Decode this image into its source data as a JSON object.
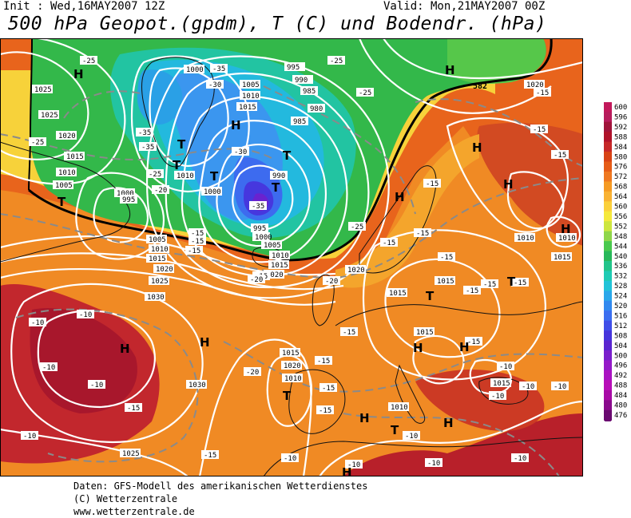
{
  "header": {
    "init": "Init : Wed,16MAY2007 12Z",
    "valid": "Valid: Mon,21MAY2007 00Z",
    "title": "500 hPa Geopot.(gpdm), T (C) und Bodendr. (hPa)"
  },
  "legend": {
    "colorbar": [
      {
        "value": "600",
        "color": "#c2185b"
      },
      {
        "value": "596",
        "color": "#b71c5c"
      },
      {
        "value": "592",
        "color": "#a0143a"
      },
      {
        "value": "588",
        "color": "#b0122a"
      },
      {
        "value": "584",
        "color": "#c62828"
      },
      {
        "value": "580",
        "color": "#d84315"
      },
      {
        "value": "576",
        "color": "#e65c17"
      },
      {
        "value": "572",
        "color": "#ef7820"
      },
      {
        "value": "568",
        "color": "#f59a23"
      },
      {
        "value": "564",
        "color": "#f9b233"
      },
      {
        "value": "560",
        "color": "#fbd03b"
      },
      {
        "value": "556",
        "color": "#f5e93c"
      },
      {
        "value": "552",
        "color": "#cde63f"
      },
      {
        "value": "548",
        "color": "#8fd64a"
      },
      {
        "value": "544",
        "color": "#4ac94e"
      },
      {
        "value": "540",
        "color": "#28b85a"
      },
      {
        "value": "536",
        "color": "#22c48a"
      },
      {
        "value": "532",
        "color": "#1fcbb4"
      },
      {
        "value": "528",
        "color": "#22c3d8"
      },
      {
        "value": "524",
        "color": "#2aa7ea"
      },
      {
        "value": "520",
        "color": "#3189ef"
      },
      {
        "value": "516",
        "color": "#3b6ef0"
      },
      {
        "value": "512",
        "color": "#3f4ee8"
      },
      {
        "value": "508",
        "color": "#4634dc"
      },
      {
        "value": "504",
        "color": "#5a25d0"
      },
      {
        "value": "500",
        "color": "#7a1fcc"
      },
      {
        "value": "496",
        "color": "#9419c8"
      },
      {
        "value": "492",
        "color": "#aa12c2"
      },
      {
        "value": "488",
        "color": "#b80eb8"
      },
      {
        "value": "484",
        "color": "#a80aa6"
      },
      {
        "value": "480",
        "color": "#8a0a8c"
      },
      {
        "value": "476",
        "color": "#6a0a70"
      }
    ]
  },
  "map": {
    "pressure_labels": [
      "1025",
      "1025",
      "1020",
      "1015",
      "1010",
      "1005",
      "1000",
      "995",
      "1005",
      "1010",
      "1015",
      "1020",
      "1025",
      "1030",
      "1030",
      "1025",
      "1000",
      "1005",
      "1010",
      "1015",
      "1010",
      "1000",
      "995",
      "990",
      "985",
      "980",
      "985",
      "990",
      "995",
      "1000",
      "1005",
      "1010",
      "1015",
      "1020",
      "1020",
      "1015",
      "1010",
      "1015",
      "1020",
      "1015",
      "1010",
      "1015",
      "1015",
      "1010",
      "1015",
      "1010",
      "1020"
    ],
    "temp_labels": [
      "-25",
      "-25",
      "-35",
      "-35",
      "-30",
      "-35",
      "-25",
      "-20",
      "-15",
      "-15",
      "-20",
      "-25",
      "-30",
      "-35",
      "-25",
      "-25",
      "-20",
      "-15",
      "-15",
      "-15",
      "-15",
      "-15",
      "-15",
      "-15",
      "-15",
      "-15",
      "-15",
      "-15",
      "-15",
      "-10",
      "-10",
      "-10",
      "-10",
      "-10",
      "-15",
      "-15",
      "-15",
      "-20",
      "-15",
      "-15",
      "-10",
      "-10",
      "-10",
      "-10",
      "-10",
      "-10",
      "-15",
      "-10",
      "-10",
      "-10",
      "-15"
    ],
    "pressure_centres": [
      "H",
      "H",
      "H",
      "T",
      "T",
      "T",
      "T",
      "T",
      "T",
      "H",
      "H",
      "H",
      "H",
      "H",
      "H",
      "T",
      "H",
      "H",
      "T",
      "H",
      "T",
      "H",
      "H",
      "T"
    ],
    "contour_582": "582"
  },
  "footer": {
    "line1": "Daten: GFS-Modell des amerikanischen Wetterdienstes",
    "line2": "(C) Wetterzentrale",
    "line3": "www.wetterzentrale.de"
  }
}
